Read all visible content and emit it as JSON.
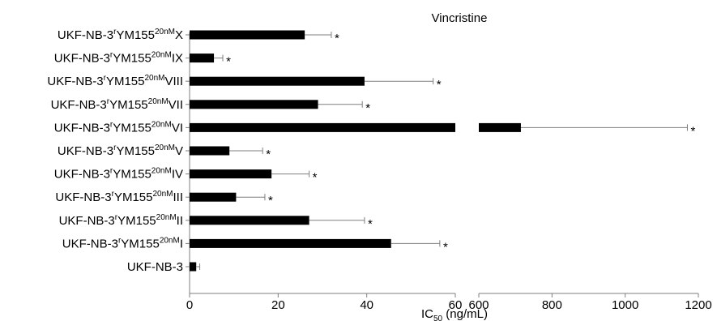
{
  "chart_data": {
    "type": "bar",
    "orientation": "horizontal",
    "broken_x_axis": true,
    "title": "Vincristine",
    "xlabel": {
      "main": "IC",
      "sub": "50",
      "rest": " (ng/mL)"
    },
    "ylabel": "",
    "segments": [
      {
        "xlim": [
          0,
          60
        ],
        "ticks": [
          "0",
          "20",
          "40",
          "60"
        ]
      },
      {
        "xlim": [
          600,
          1200
        ],
        "ticks": [
          "600",
          "800",
          "1000",
          "1200"
        ]
      }
    ],
    "label_parts": {
      "base": "UKF-NB-3",
      "sup1": "r",
      "mid": "YM155",
      "sup2": "20nM"
    },
    "categories": [
      {
        "label": "UKF-NB-3rYM155 20nM X",
        "suffix": "X",
        "value": 26,
        "error": 6,
        "significant": true
      },
      {
        "label": "UKF-NB-3rYM155 20nM IX",
        "suffix": "IX",
        "value": 5.5,
        "error": 2,
        "significant": true
      },
      {
        "label": "UKF-NB-3rYM155 20nM VIII",
        "suffix": "VIII",
        "value": 39.5,
        "error": 15.5,
        "significant": true
      },
      {
        "label": "UKF-NB-3rYM155 20nM VII",
        "suffix": "VII",
        "value": 29,
        "error": 10,
        "significant": true
      },
      {
        "label": "UKF-NB-3rYM155 20nM VI",
        "suffix": "VI",
        "value": 715,
        "error": 455,
        "significant": true
      },
      {
        "label": "UKF-NB-3rYM155 20nM V",
        "suffix": "V",
        "value": 9,
        "error": 7.5,
        "significant": true
      },
      {
        "label": "UKF-NB-3rYM155 20nM IV",
        "suffix": "IV",
        "value": 18.5,
        "error": 8.5,
        "significant": true
      },
      {
        "label": "UKF-NB-3rYM155 20nM III",
        "suffix": "III",
        "value": 10.5,
        "error": 6.5,
        "significant": true
      },
      {
        "label": "UKF-NB-3rYM155 20nM II",
        "suffix": "II",
        "value": 27,
        "error": 12.5,
        "significant": true
      },
      {
        "label": "UKF-NB-3rYM155 20nM I",
        "suffix": "I",
        "value": 45.5,
        "error": 11,
        "significant": true
      },
      {
        "label": "UKF-NB-3",
        "suffix": "",
        "value": 1.5,
        "error": 0.8,
        "significant": false
      }
    ],
    "significance_marker": "*",
    "grid": false,
    "legend": "none",
    "colors": {
      "bar": "#000000",
      "error_bar": "#7f7f7f",
      "axis": "#7f7f7f"
    }
  }
}
